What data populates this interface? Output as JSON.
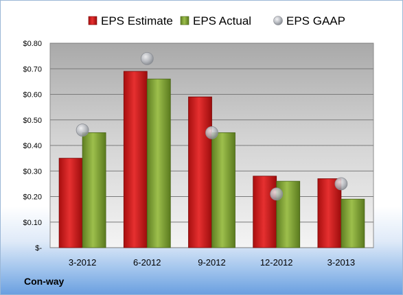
{
  "company": "Con-way",
  "chart_data": {
    "type": "bar",
    "categories": [
      "3-2012",
      "6-2012",
      "9-2012",
      "12-2012",
      "3-2013"
    ],
    "series": [
      {
        "name": "EPS Estimate",
        "type": "bar",
        "color": "#d42020",
        "values": [
          0.35,
          0.69,
          0.59,
          0.28,
          0.27
        ]
      },
      {
        "name": "EPS Actual",
        "type": "bar",
        "color": "#8aad3c",
        "values": [
          0.45,
          0.66,
          0.45,
          0.26,
          0.19
        ]
      },
      {
        "name": "EPS GAAP",
        "type": "scatter",
        "color": "#b8bcc4",
        "values": [
          0.46,
          0.74,
          0.45,
          0.21,
          0.25
        ]
      }
    ],
    "ylim": [
      0,
      0.8
    ],
    "yticks": [
      0,
      0.1,
      0.2,
      0.3,
      0.4,
      0.5,
      0.6,
      0.7,
      0.8
    ],
    "ytick_labels": [
      "$-",
      "$0.10",
      "$0.20",
      "$0.30",
      "$0.40",
      "$0.50",
      "$0.60",
      "$0.70",
      "$0.80"
    ],
    "grid": true,
    "legend": "top"
  }
}
